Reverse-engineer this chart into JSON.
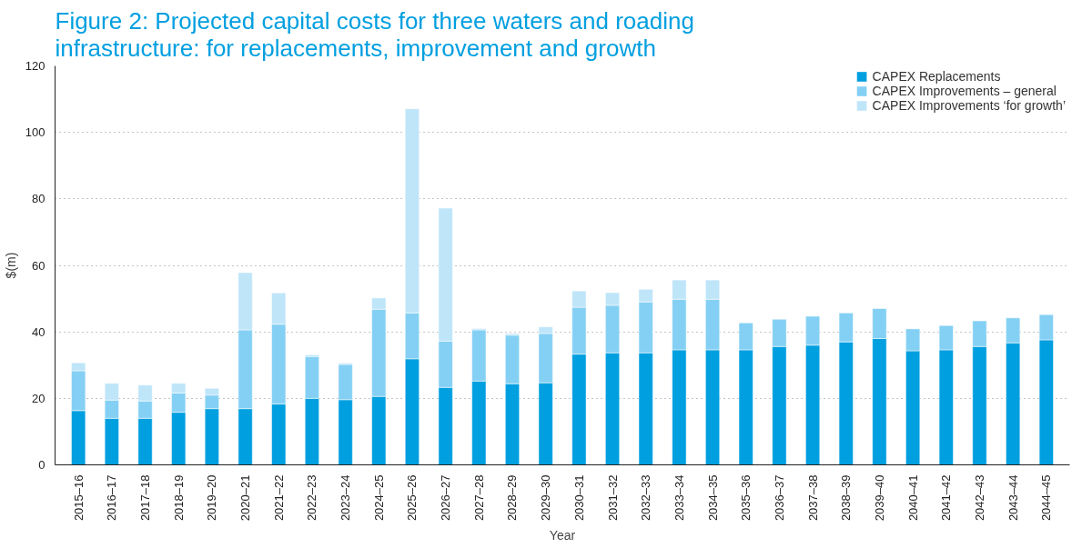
{
  "chart_data": {
    "type": "bar",
    "stacked": true,
    "title": "Figure 2: Projected capital costs for three waters and roading infrastructure: for replacements, improvement and growth",
    "xlabel": "Year",
    "ylabel": "$(m)",
    "categories": [
      "2015–16",
      "2016–17",
      "2017–18",
      "2018–19",
      "2019–20",
      "2020–21",
      "2021–22",
      "2022–23",
      "2023–24",
      "2024–25",
      "2025–26",
      "2026–27",
      "2027–28",
      "2028–29",
      "2029–30",
      "2030–31",
      "2031–32",
      "2032–33",
      "2033–34",
      "2034–35",
      "2035–36",
      "2036–37",
      "2037–38",
      "2038–39",
      "2039–40",
      "2040–41",
      "2041–42",
      "2042–43",
      "2043–44",
      "2044–45"
    ],
    "series": [
      {
        "name": "CAPEX Replacements",
        "color": "#009fe0",
        "values": [
          16.3,
          14,
          14,
          15.8,
          16.9,
          16.9,
          18.3,
          20,
          19.6,
          20.6,
          31.9,
          23.3,
          25.2,
          24.4,
          24.7,
          33.3,
          33.7,
          33.7,
          34.6,
          34.6,
          34.6,
          35.6,
          36.0,
          37.0,
          38.0,
          34.3,
          34.6,
          35.6,
          36.7,
          37.6
        ]
      },
      {
        "name": "CAPEX Improvements – general",
        "color": "#84d0f4",
        "values": [
          12,
          5.5,
          5.2,
          5.8,
          4.1,
          23.7,
          24,
          12.6,
          10.6,
          26.2,
          13.8,
          13.9,
          15.4,
          14.6,
          14.8,
          14.1,
          14.3,
          15.3,
          15.2,
          15.2,
          8.1,
          8.2,
          8.7,
          8.7,
          9.0,
          6.6,
          7.3,
          7.7,
          7.5,
          7.6
        ]
      },
      {
        "name": "CAPEX Improvements ‘for growth’",
        "color": "#bfe5f9",
        "values": [
          2.4,
          5,
          4.8,
          2.9,
          2,
          17.2,
          9.4,
          0.5,
          0.4,
          3.4,
          61.4,
          40,
          0.4,
          0.5,
          2.0,
          4.9,
          3.8,
          3.8,
          5.8,
          5.8,
          null,
          null,
          null,
          null,
          null,
          null,
          null,
          null,
          null,
          null
        ]
      }
    ],
    "ylim": [
      0,
      120
    ],
    "yticks": [
      0,
      20,
      40,
      60,
      80,
      100,
      120
    ],
    "grid": "y",
    "legend": "top right"
  }
}
